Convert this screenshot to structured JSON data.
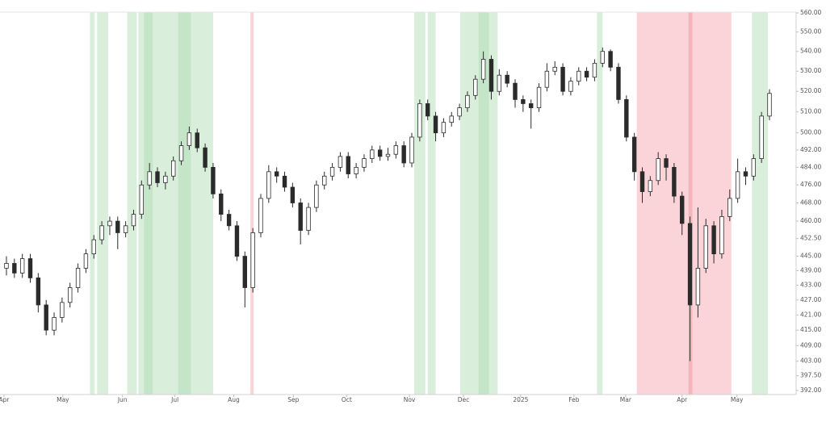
{
  "chart_data": {
    "type": "candlestick",
    "log_scale": true,
    "up_color": "#ffffff",
    "down_color": "#2b2b2b",
    "wick_color": "#2b2b2b",
    "xlim": [
      -0.81,
      99.25
    ],
    "ylim": [
      392,
      560
    ],
    "xticks": [
      {
        "value": -0.3,
        "label": "Apr"
      },
      {
        "value": 7.1,
        "label": "May"
      },
      {
        "value": 14.6,
        "label": "Jun"
      },
      {
        "value": 21.2,
        "label": "Jul"
      },
      {
        "value": 28.6,
        "label": "Aug"
      },
      {
        "value": 36.1,
        "label": "Sep"
      },
      {
        "value": 42.8,
        "label": "Oct"
      },
      {
        "value": 50.7,
        "label": "Nov"
      },
      {
        "value": 57.5,
        "label": "Dec"
      },
      {
        "value": 64.7,
        "label": "2025"
      },
      {
        "value": 71.4,
        "label": "Feb"
      },
      {
        "value": 77.9,
        "label": "Mar"
      },
      {
        "value": 85.0,
        "label": "Apr"
      },
      {
        "value": 91.9,
        "label": "May"
      }
    ],
    "yticks": [
      {
        "value": 560,
        "label": "560.00"
      },
      {
        "value": 550,
        "label": "550.00"
      },
      {
        "value": 540,
        "label": "540.00"
      },
      {
        "value": 530,
        "label": "530.00"
      },
      {
        "value": 520,
        "label": "520.00"
      },
      {
        "value": 510,
        "label": "510.00"
      },
      {
        "value": 500,
        "label": "500.00"
      },
      {
        "value": 492,
        "label": "492.00"
      },
      {
        "value": 484,
        "label": "484.00"
      },
      {
        "value": 476,
        "label": "476.00"
      },
      {
        "value": 468,
        "label": "468.00"
      },
      {
        "value": 460,
        "label": "460.00"
      },
      {
        "value": 452.5,
        "label": "452.50"
      },
      {
        "value": 445,
        "label": "445.00"
      },
      {
        "value": 439,
        "label": "439.00"
      },
      {
        "value": 433,
        "label": "433.00"
      },
      {
        "value": 427,
        "label": "427.00"
      },
      {
        "value": 421,
        "label": "421.00"
      },
      {
        "value": 415,
        "label": "415.00"
      },
      {
        "value": 409,
        "label": "409.00"
      },
      {
        "value": 403,
        "label": "403.00"
      },
      {
        "value": 397.5,
        "label": "397.50"
      },
      {
        "value": 392,
        "label": "392.00"
      }
    ],
    "bands": [
      {
        "start": 10.5,
        "end": 11.1,
        "color": "#d9eedb"
      },
      {
        "start": 11.4,
        "end": 12.8,
        "color": "#d9eedb"
      },
      {
        "start": 15.2,
        "end": 16.4,
        "color": "#d9eedb"
      },
      {
        "start": 16.6,
        "end": 26.0,
        "color": "#d9eedb"
      },
      {
        "start": 17.3,
        "end": 18.4,
        "color": "#c4e5c8"
      },
      {
        "start": 21.6,
        "end": 23.2,
        "color": "#c4e5c8"
      },
      {
        "start": 30.7,
        "end": 31.1,
        "color": "#fad4d8"
      },
      {
        "start": 51.3,
        "end": 52.7,
        "color": "#d9eedb"
      },
      {
        "start": 53.0,
        "end": 54.0,
        "color": "#d9eedb"
      },
      {
        "start": 57.1,
        "end": 61.8,
        "color": "#d9eedb"
      },
      {
        "start": 59.4,
        "end": 60.7,
        "color": "#c4e5c8"
      },
      {
        "start": 74.3,
        "end": 75.0,
        "color": "#d9eedb"
      },
      {
        "start": 79.3,
        "end": 91.2,
        "color": "#fad4d8"
      },
      {
        "start": 85.8,
        "end": 86.3,
        "color": "#f5b5bc"
      },
      {
        "start": 93.8,
        "end": 95.8,
        "color": "#d9eedb"
      }
    ],
    "open": [
      440,
      442,
      438,
      444,
      436,
      425,
      415,
      420,
      426,
      432,
      440,
      446,
      452,
      458,
      460,
      455,
      458,
      463,
      476,
      482,
      477,
      480,
      487,
      494,
      500,
      493,
      484,
      472,
      463,
      458,
      445,
      432,
      455,
      470,
      482,
      480,
      475,
      468,
      456,
      466,
      476,
      480,
      484,
      489,
      481,
      484,
      488,
      492,
      489,
      490,
      494,
      486,
      498,
      514,
      508,
      500,
      505,
      508,
      512,
      518,
      526,
      536,
      520,
      528,
      524,
      516,
      514,
      512,
      522,
      530,
      532,
      520,
      525,
      530,
      527,
      534,
      540,
      532,
      516,
      498,
      482,
      473,
      478,
      488,
      484,
      471,
      459,
      425,
      440,
      458,
      446,
      462,
      470,
      482,
      480,
      488,
      508
    ],
    "high": [
      445,
      444,
      446,
      446,
      438,
      427,
      422,
      428,
      434,
      442,
      448,
      454,
      460,
      462,
      462,
      460,
      465,
      478,
      486,
      484,
      482,
      489,
      496,
      503,
      502,
      495,
      486,
      474,
      465,
      460,
      447,
      457,
      472,
      485,
      484,
      482,
      477,
      470,
      468,
      478,
      482,
      486,
      491,
      491,
      486,
      490,
      494,
      494,
      493,
      496,
      496,
      500,
      516,
      516,
      510,
      507,
      510,
      514,
      520,
      528,
      540,
      538,
      531,
      530,
      526,
      518,
      516,
      524,
      534,
      535,
      534,
      527,
      532,
      532,
      536,
      542,
      541,
      534,
      518,
      500,
      484,
      480,
      491,
      490,
      486,
      473,
      462,
      466,
      461,
      460,
      465,
      474,
      488,
      484,
      490,
      510,
      521
    ],
    "low": [
      437,
      436,
      436,
      434,
      422,
      413,
      413,
      418,
      424,
      430,
      438,
      444,
      450,
      454,
      448,
      453,
      456,
      461,
      474,
      475,
      474,
      478,
      485,
      492,
      491,
      482,
      470,
      460,
      456,
      443,
      424,
      430,
      453,
      468,
      477,
      473,
      466,
      450,
      454,
      464,
      474,
      478,
      482,
      479,
      479,
      482,
      486,
      487,
      487,
      488,
      484,
      484,
      496,
      506,
      496,
      498,
      503,
      506,
      510,
      516,
      524,
      516,
      518,
      522,
      512,
      510,
      502,
      510,
      520,
      528,
      518,
      518,
      523,
      525,
      525,
      532,
      530,
      514,
      496,
      478,
      468,
      471,
      476,
      478,
      468,
      454,
      403,
      420,
      438,
      442,
      444,
      460,
      468,
      476,
      478,
      486,
      506
    ],
    "close": [
      442,
      438,
      444,
      436,
      425,
      415,
      420,
      426,
      432,
      440,
      446,
      452,
      458,
      460,
      455,
      458,
      463,
      476,
      482,
      477,
      480,
      487,
      494,
      500,
      493,
      484,
      472,
      463,
      458,
      445,
      432,
      455,
      470,
      482,
      480,
      475,
      468,
      456,
      466,
      476,
      480,
      484,
      489,
      481,
      484,
      488,
      492,
      489,
      490,
      494,
      486,
      498,
      514,
      508,
      500,
      505,
      508,
      512,
      518,
      526,
      536,
      520,
      528,
      524,
      516,
      514,
      512,
      522,
      530,
      532,
      520,
      525,
      530,
      527,
      534,
      540,
      532,
      516,
      498,
      482,
      473,
      478,
      488,
      484,
      471,
      459,
      425,
      440,
      458,
      446,
      462,
      470,
      482,
      480,
      488,
      508,
      519
    ]
  }
}
